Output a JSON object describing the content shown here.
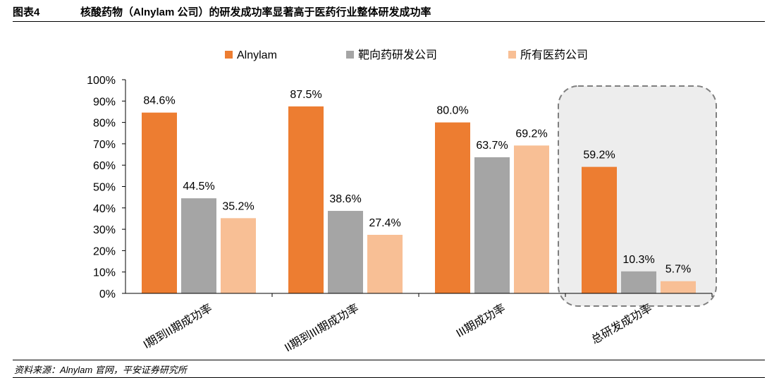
{
  "figure": {
    "number": "图表4",
    "title": "核酸药物（Alnylam 公司）的研发成功率显著高于医药行业整体研发成功率",
    "source": "资料来源：Alnylam 官网，平安证券研究所"
  },
  "chart_data": {
    "type": "bar",
    "categories": [
      "I期到II期成功率",
      "II期到III期成功率",
      "III期成功率",
      "总研发成功率"
    ],
    "series": [
      {
        "name": "Alnylam",
        "values": [
          84.6,
          87.5,
          80.0,
          59.2
        ],
        "labels": [
          "84.6%",
          "87.5%",
          "80.0%",
          "59.2%"
        ],
        "color": "#ED7D31"
      },
      {
        "name": "靶向药研发公司",
        "values": [
          44.5,
          38.6,
          63.7,
          10.3
        ],
        "labels": [
          "44.5%",
          "38.6%",
          "63.7%",
          "10.3%"
        ],
        "color": "#A5A5A5"
      },
      {
        "name": "所有医药公司",
        "values": [
          35.2,
          27.4,
          69.2,
          5.7
        ],
        "labels": [
          "35.2%",
          "27.4%",
          "69.2%",
          "5.7%"
        ],
        "color": "#F8BF95"
      }
    ],
    "ylim": [
      0,
      100
    ],
    "yticks": [
      "0%",
      "10%",
      "20%",
      "30%",
      "40%",
      "50%",
      "60%",
      "70%",
      "80%",
      "90%",
      "100%"
    ],
    "legend_position": "top",
    "grid": false,
    "highlighted_category": "总研发成功率",
    "highlight_color": "#EDEDED"
  }
}
